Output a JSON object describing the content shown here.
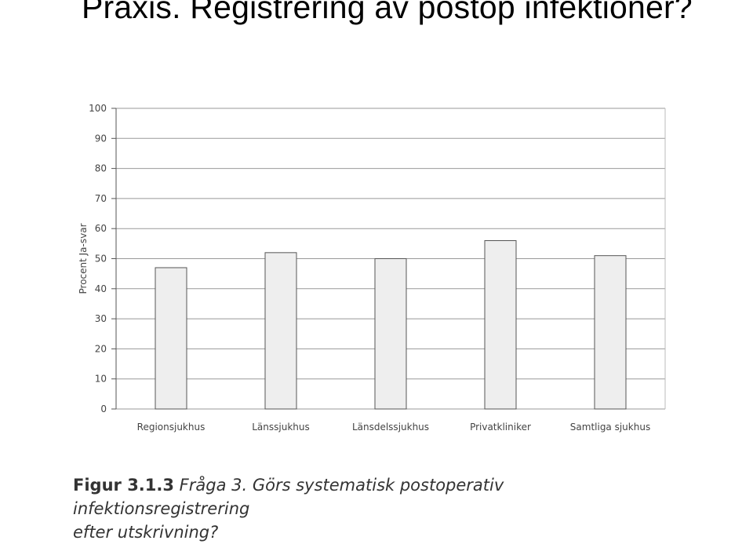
{
  "slide": {
    "title": "Praxis. Registrering av postop infektioner?"
  },
  "caption": {
    "label": "Figur 3.1.3",
    "text": "Fråga 3. Görs systematisk postoperativ infektionsregistrering",
    "text_line2": "efter utskrivning?"
  },
  "chart_data": {
    "type": "bar",
    "categories": [
      "Regionsjukhus",
      "Länssjukhus",
      "Länsdelssjukhus",
      "Privatkliniker",
      "Samtliga sjukhus"
    ],
    "values": [
      47,
      52,
      50,
      56,
      51
    ],
    "xlabel": "",
    "ylabel": "Procent Ja-svar",
    "ylim": [
      0,
      100
    ],
    "yticks": [
      0,
      10,
      20,
      30,
      40,
      50,
      60,
      70,
      80,
      90,
      100
    ],
    "grid": true,
    "colors": {
      "bar_fill": "#eeeeee",
      "bar_stroke": "#555555",
      "grid": "#999999",
      "axis": "#555555",
      "text": "#444444"
    }
  }
}
